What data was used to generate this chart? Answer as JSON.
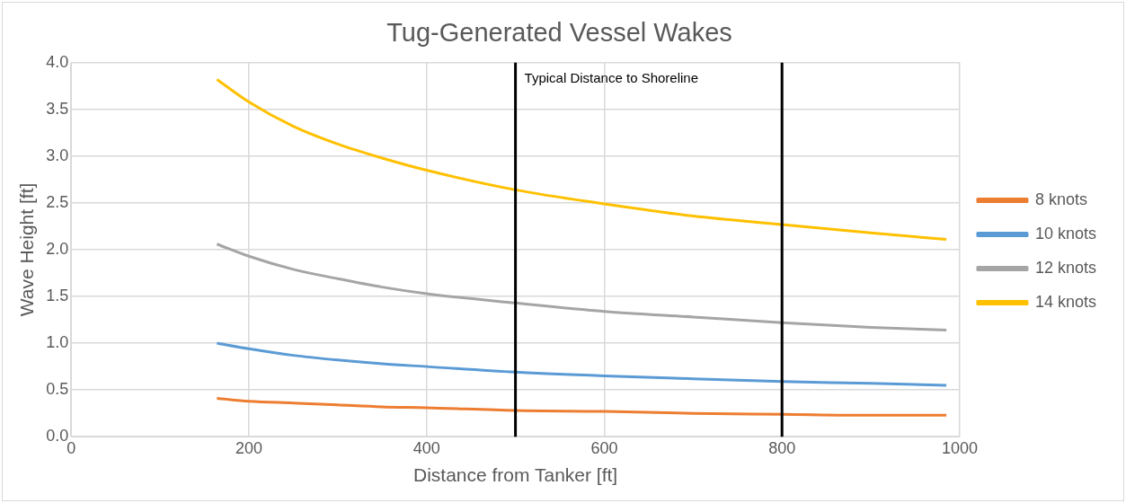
{
  "chart_data": {
    "type": "line",
    "title": "Tug-Generated Vessel Wakes",
    "xlabel": "Distance from Tanker [ft]",
    "ylabel": "Wave Height [ft]",
    "x": [
      164,
      200,
      250,
      300,
      350,
      400,
      500,
      600,
      700,
      800,
      900,
      985
    ],
    "series": [
      {
        "name": "8 knots",
        "color": "#ed7d31",
        "values": [
          0.41,
          0.38,
          0.36,
          0.34,
          0.32,
          0.31,
          0.28,
          0.27,
          0.25,
          0.24,
          0.23,
          0.23
        ]
      },
      {
        "name": "10 knots",
        "color": "#5b9bd5",
        "values": [
          1.0,
          0.94,
          0.87,
          0.82,
          0.78,
          0.75,
          0.69,
          0.65,
          0.62,
          0.59,
          0.57,
          0.55
        ]
      },
      {
        "name": "12 knots",
        "color": "#a5a5a5",
        "values": [
          2.06,
          1.93,
          1.79,
          1.69,
          1.6,
          1.53,
          1.43,
          1.34,
          1.28,
          1.22,
          1.17,
          1.14
        ]
      },
      {
        "name": "14 knots",
        "color": "#ffc000",
        "values": [
          3.82,
          3.58,
          3.32,
          3.13,
          2.98,
          2.85,
          2.64,
          2.49,
          2.36,
          2.27,
          2.18,
          2.11
        ]
      }
    ],
    "xlim": [
      0,
      1000
    ],
    "xticks": [
      0,
      200,
      400,
      600,
      800,
      1000
    ],
    "ylim": [
      0,
      4.0
    ],
    "yticks": [
      {
        "value": 0,
        "label": "0.0"
      },
      {
        "value": 0.5,
        "label": "0.5"
      },
      {
        "value": 1,
        "label": "1.0"
      },
      {
        "value": 1.5,
        "label": "1.5"
      },
      {
        "value": 2,
        "label": "2.0"
      },
      {
        "value": 2.5,
        "label": "2.5"
      },
      {
        "value": 3,
        "label": "3.0"
      },
      {
        "value": 3.5,
        "label": "3.5"
      },
      {
        "value": 4,
        "label": "4.0"
      }
    ],
    "ref_lines": [
      {
        "axis": "x",
        "value": 500,
        "label": null,
        "color": "#000000"
      },
      {
        "axis": "x",
        "value": 800,
        "label": null,
        "color": "#000000"
      }
    ],
    "annotations": [
      "Typical Distance to Shoreline"
    ],
    "grid": true,
    "legend": "right",
    "marker": "none",
    "line_style": "solid"
  }
}
